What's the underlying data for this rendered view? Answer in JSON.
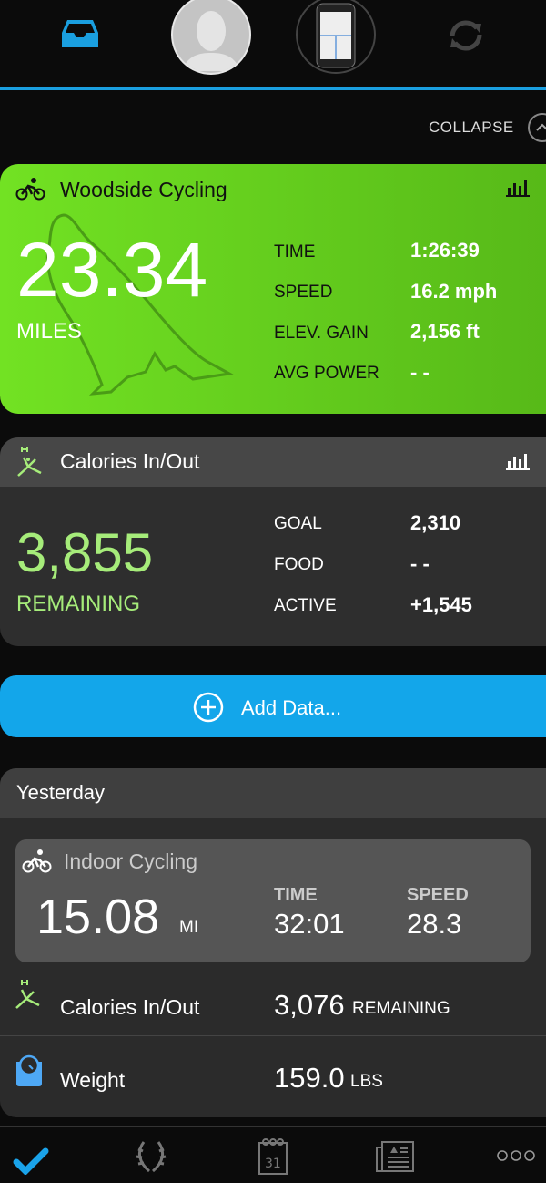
{
  "header": {
    "collapse_label": "COLLAPSE"
  },
  "activity": {
    "title": "Woodside Cycling",
    "distance": "23.34",
    "distance_unit": "MILES",
    "stats": [
      {
        "label": "TIME",
        "value": "1:26:39"
      },
      {
        "label": "SPEED",
        "value": "16.2 mph"
      },
      {
        "label": "ELEV. GAIN",
        "value": "2,156 ft"
      },
      {
        "label": "AVG POWER",
        "value": "- -"
      }
    ]
  },
  "calories": {
    "title": "Calories In/Out",
    "remaining": "3,855",
    "remaining_label": "REMAINING",
    "stats": [
      {
        "label": "GOAL",
        "value": "2,310"
      },
      {
        "label": "FOOD",
        "value": "- -"
      },
      {
        "label": "ACTIVE",
        "value": "+1,545"
      }
    ]
  },
  "add_data": {
    "label": "Add Data..."
  },
  "yesterday": {
    "title": "Yesterday",
    "indoor": {
      "title": "Indoor Cycling",
      "distance": "15.08",
      "unit": "MI",
      "time_label": "TIME",
      "time": "32:01",
      "speed_label": "SPEED",
      "speed": "28.3"
    },
    "calories": {
      "label": "Calories In/Out",
      "value": "3,076",
      "unit": "REMAINING"
    },
    "weight": {
      "label": "Weight",
      "value": "159.0",
      "unit": "LBS"
    }
  },
  "colors": {
    "accent": "#1a9fe0",
    "activity_green": "#66cc1e",
    "calorie_green": "#a6ec7a"
  },
  "icons": [
    "inbox-icon",
    "avatar-icon",
    "device-icon",
    "sync-icon",
    "bike-icon",
    "bar-chart-icon",
    "myfitnesspal-icon",
    "plus-circle-icon",
    "scale-icon",
    "checkmark-icon",
    "laurel-icon",
    "calendar-icon",
    "news-icon",
    "more-icon"
  ]
}
